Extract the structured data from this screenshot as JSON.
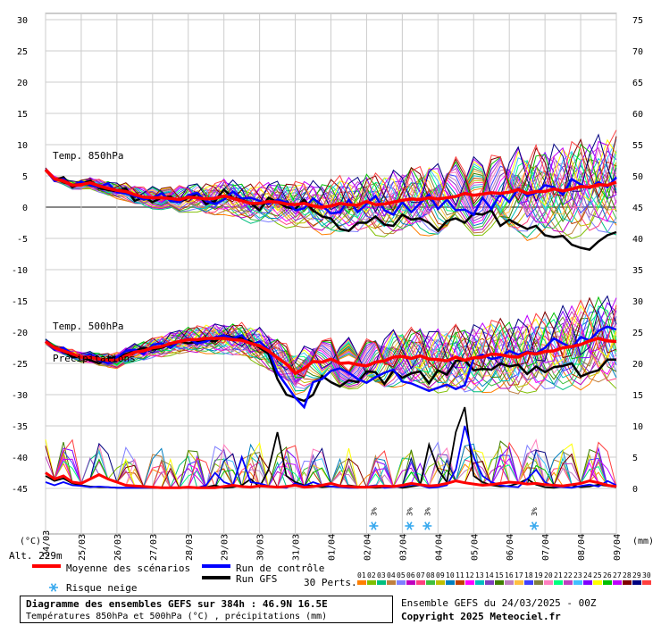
{
  "chart_data": {
    "type": "line",
    "title": "Diagramme des ensembles GEFS sur 384h : 46.9N 16.5E",
    "subtitle": "Températures 850hPa et 500hPa (°C) , précipitations (mm)",
    "left_axis": {
      "label": "(°C)",
      "ticks": [
        30,
        25,
        20,
        15,
        10,
        5,
        0,
        -5,
        -10,
        -15,
        -20,
        -25,
        -30,
        -35,
        -40,
        -45
      ],
      "range": [
        -45,
        30
      ]
    },
    "right_axis": {
      "label": "(mm)",
      "ticks": [
        75,
        70,
        65,
        60,
        55,
        50,
        45,
        40,
        35,
        30,
        25,
        20,
        15,
        10,
        5,
        0
      ],
      "range": [
        0,
        75
      ]
    },
    "x_dates": [
      "25/03",
      "26/03",
      "27/03",
      "28/03",
      "29/03",
      "30/03",
      "31/03",
      "01/04",
      "02/04",
      "03/04",
      "04/04",
      "05/04",
      "06/04",
      "07/04",
      "08/04",
      "09/04"
    ],
    "x_first_label": "24/03",
    "altitude_label": "Alt. 229m",
    "panel_labels": {
      "t850": "Temp. 850hPa",
      "t500": "Temp. 500hPa",
      "precip": "Précipitations"
    },
    "snow_risk": [
      {
        "date_index": 9.2,
        "pct": "3%"
      },
      {
        "date_index": 10.2,
        "pct": "3%"
      },
      {
        "date_index": 10.7,
        "pct": "3%"
      },
      {
        "date_index": 13.7,
        "pct": "3%"
      }
    ],
    "series": [
      {
        "name": "Moyenne des scénarios",
        "color": "#ff0000",
        "t850": [
          6,
          4.5,
          4.2,
          3.5,
          3.6,
          3.9,
          3.4,
          3.0,
          2.7,
          2.5,
          2.0,
          1.6,
          1.5,
          1.5,
          1.4,
          1.2,
          1.6,
          1.5,
          1.3,
          1.4,
          1.8,
          1.4,
          1.0,
          0.6,
          0.6,
          0.9,
          0.8,
          0.5,
          0.4,
          0.6,
          0.2,
          0,
          0.2,
          0.6,
          0.4,
          0.3,
          0.9,
          0.4,
          0.5,
          0.8,
          1.1,
          1.3,
          1.2,
          1.5,
          1.3,
          1.5,
          1.7,
          2.2,
          1.9,
          2.1,
          2.3,
          2.2,
          2.4,
          2.8,
          2.2,
          2.5,
          2.5,
          2.9,
          2.6,
          2.9,
          3.3,
          3.2,
          3.6,
          3.5,
          4.0
        ],
        "t500": [
          -21.5,
          -22.5,
          -23,
          -23.5,
          -24,
          -24,
          -24.3,
          -24.5,
          -24.5,
          -23.8,
          -23.2,
          -23,
          -22.5,
          -22.3,
          -21.8,
          -21.5,
          -21.2,
          -21.2,
          -21,
          -21,
          -21,
          -21.2,
          -21.3,
          -21.8,
          -22.2,
          -23.0,
          -24.1,
          -25.1,
          -26.6,
          -25.8,
          -24.7,
          -24.8,
          -24.3,
          -25.0,
          -24.9,
          -25.2,
          -25.4,
          -24.8,
          -24.6,
          -24.0,
          -23.9,
          -24.2,
          -23.8,
          -24.3,
          -24.4,
          -24.6,
          -24.0,
          -24.5,
          -24.1,
          -24.0,
          -23.5,
          -23.6,
          -23.9,
          -24.0,
          -23.3,
          -23.5,
          -23.1,
          -23.0,
          -22.5,
          -22.3,
          -22.0,
          -21.4,
          -21.0,
          -21.4,
          -21.5
        ],
        "precip": [
          2.5,
          1.5,
          2,
          1,
          0.8,
          1.5,
          2.2,
          1.5,
          1,
          0.5,
          0.4,
          0.3,
          0.2,
          0.1,
          0.1,
          0.1,
          0.2,
          0.1,
          0.1,
          0.1,
          0.3,
          0.5,
          0.3,
          0.2,
          0.4,
          0.3,
          0.2,
          0.3,
          0.5,
          0.2,
          0.3,
          0.5,
          0.8,
          0.4,
          0.3,
          0.2,
          0.2,
          0.3,
          0.4,
          0.3,
          0.5,
          0.8,
          0.6,
          0.4,
          0.5,
          0.8,
          1.2,
          0.9,
          0.7,
          0.5,
          0.6,
          0.8,
          1.0,
          0.9,
          0.7,
          0.8,
          0.6,
          0.5,
          0.4,
          0.6,
          0.8,
          1.2,
          0.9,
          0.5,
          0.3
        ]
      },
      {
        "name": "Run de contrôle",
        "color": "#0000ff",
        "t850": [
          6,
          4.2,
          4.5,
          3.4,
          4.1,
          3.5,
          3.2,
          3.8,
          2.4,
          2.2,
          1.8,
          1.2,
          1.5,
          2.2,
          1.0,
          0.8,
          1.9,
          2.3,
          1.0,
          0.5,
          1.2,
          2.5,
          1.4,
          1.5,
          1.0,
          0.5,
          1.2,
          0.8,
          -0.5,
          -0.2,
          1.4,
          0.3,
          -1.0,
          -0.8,
          1.2,
          -0.8,
          0.5,
          1.8,
          -0.5,
          -1.2,
          0.8,
          -0.8,
          0.6,
          2.0,
          -0.3,
          1.2,
          -0.5,
          -0.4,
          -1.2,
          1.5,
          -0.3,
          2.2,
          0.8,
          3.0,
          1.8,
          2.3,
          3.5,
          3.2,
          2.0,
          4.5,
          3.6,
          3.0,
          4.0,
          3.2,
          4.8
        ],
        "t500": [
          -21.5,
          -22.8,
          -22.5,
          -23.5,
          -24,
          -23.5,
          -24.5,
          -25,
          -24,
          -23,
          -22.8,
          -23.5,
          -22,
          -21.8,
          -22.5,
          -21.5,
          -21,
          -21.8,
          -21.5,
          -20.8,
          -20.5,
          -21,
          -20.5,
          -22,
          -21.5,
          -22.8,
          -26.5,
          -28.5,
          -30.5,
          -32,
          -28,
          -27.5,
          -26.2,
          -25.8,
          -26.5,
          -27.5,
          -28.1,
          -27.2,
          -26.5,
          -26.0,
          -27.9,
          -28.2,
          -28.8,
          -29.4,
          -28.9,
          -28.4,
          -29.1,
          -28.5,
          -24.2,
          -23.6,
          -24.3,
          -24.0,
          -23.0,
          -23.6,
          -23.1,
          -23.4,
          -22.5,
          -21.0,
          -21.8,
          -22.5,
          -20.8,
          -21.3,
          -19.8,
          -19.1,
          -19.6
        ],
        "precip": [
          1,
          0.5,
          1,
          0.5,
          0.4,
          0.2,
          0.3,
          0.2,
          0.1,
          0.1,
          0.1,
          0.1,
          0.1,
          0.1,
          0.1,
          0.1,
          0.1,
          0.1,
          0.5,
          2.5,
          1,
          0.5,
          5,
          1,
          0.8,
          0.4,
          0.2,
          0.1,
          0.8,
          0.4,
          1,
          0.5,
          0.3,
          0.2,
          0.1,
          0.1,
          0.3,
          0.5,
          0.1,
          0.2,
          0.3,
          0.6,
          0.5,
          0.1,
          0.2,
          0.5,
          3,
          10,
          5,
          2,
          1,
          0.5,
          0.3,
          0.2,
          1.5,
          3,
          1,
          0.3,
          0.2,
          0.1,
          0.4,
          0.6,
          0.3,
          1.2,
          0.5
        ]
      },
      {
        "name": "Run GFS",
        "color": "#000000",
        "t850": [
          6,
          4.3,
          4.8,
          3.2,
          3.8,
          4.2,
          3.0,
          2.8,
          2.5,
          3.0,
          1.0,
          1.6,
          0.8,
          1.5,
          1.7,
          0.8,
          1.5,
          2.2,
          0.5,
          1.0,
          2.8,
          1.5,
          1.2,
          0.6,
          -0.5,
          1.5,
          0.8,
          0.0,
          -0.3,
          1.2,
          -0.5,
          -1.5,
          -1.8,
          -3.5,
          -3.8,
          -2.5,
          -2.5,
          -1.5,
          -2.8,
          -3.0,
          -1.2,
          -2.0,
          -1.8,
          -2.5,
          -3.8,
          -2.2,
          -1.8,
          -2.5,
          -1.0,
          -1.2,
          -0.5,
          -3.0,
          -2.0,
          -2.8,
          -3.5,
          -3.0,
          -4.5,
          -4.8,
          -4.6,
          -6.0,
          -6.5,
          -6.8,
          -5.5,
          -4.5,
          -4.0
        ],
        "t500": [
          -21.5,
          -22.5,
          -23,
          -24,
          -24,
          -24.5,
          -25,
          -24.2,
          -24,
          -23.5,
          -23,
          -22.5,
          -22.8,
          -22.5,
          -22,
          -21.5,
          -21.8,
          -21.5,
          -21.2,
          -21.5,
          -20.5,
          -20.8,
          -21,
          -21.5,
          -22.5,
          -23.5,
          -27.5,
          -30,
          -30.5,
          -31,
          -30,
          -27,
          -28,
          -28.7,
          -27.7,
          -28.0,
          -26.3,
          -26.4,
          -28.3,
          -26.2,
          -27.3,
          -26.6,
          -26.3,
          -28.2,
          -26.1,
          -26.8,
          -24.6,
          -24.5,
          -26.1,
          -25.9,
          -26.0,
          -25.0,
          -25.5,
          -25.2,
          -26.7,
          -25.5,
          -26.4,
          -25.6,
          -25.4,
          -25.0,
          -27.1,
          -26.5,
          -26.1,
          -24.4,
          -24.4
        ],
        "precip": [
          2,
          1.2,
          1.6,
          0.8,
          0.5,
          0.3,
          0.2,
          0.2,
          0.1,
          0.1,
          0.1,
          0.1,
          0.1,
          0.1,
          0.1,
          0.1,
          0.1,
          0.1,
          0.2,
          0.5,
          0.1,
          0.2,
          0.5,
          1.5,
          0.2,
          3,
          9,
          2,
          1,
          0.5,
          0.4,
          0.2,
          0.3,
          0.2,
          0.5,
          0.3,
          0.2,
          0.1,
          0.2,
          0.4,
          0.1,
          0.3,
          0.5,
          7,
          3,
          1,
          9,
          13,
          2,
          1,
          0.5,
          0.3,
          0.4,
          0.8,
          1.5,
          0.6,
          0.2,
          0.1,
          0.3,
          0.5,
          0.2,
          0.3,
          0.6,
          0.4,
          0.2
        ]
      }
    ],
    "perturbations": {
      "label": "30 Perts.",
      "ids": [
        "01",
        "02",
        "03",
        "04",
        "05",
        "06",
        "07",
        "08",
        "09",
        "10",
        "11",
        "12",
        "13",
        "14",
        "15",
        "16",
        "17",
        "18",
        "19",
        "20",
        "21",
        "22",
        "23",
        "24",
        "25",
        "26",
        "27",
        "28",
        "29",
        "30"
      ],
      "colors": [
        "#ff7f00",
        "#7fbf00",
        "#00bf7f",
        "#bf7f3f",
        "#7f7fff",
        "#bf00bf",
        "#ff3f7f",
        "#3fbf3f",
        "#bfbf00",
        "#007fbf",
        "#bf3f00",
        "#ff00ff",
        "#00bfbf",
        "#7f3fbf",
        "#3f7f00",
        "#bf7fbf",
        "#ffbf3f",
        "#3f3fff",
        "#7f7f3f",
        "#ff7fbf",
        "#00ff7f",
        "#bf3fbf",
        "#3fbfff",
        "#7f00ff",
        "#ffff00",
        "#00bf00",
        "#bf00ff",
        "#7f0000",
        "#00007f",
        "#ff3f3f"
      ]
    },
    "legend": {
      "mean": "Moyenne des scénarios",
      "control": "Run de contrôle",
      "gfs": "Run GFS",
      "snow": "Risque neige"
    },
    "ensemble_label": "Ensemble GEFS du 24/03/2025 - 00Z",
    "copyright": "Copyright 2025 Meteociel.fr",
    "grid": true
  }
}
